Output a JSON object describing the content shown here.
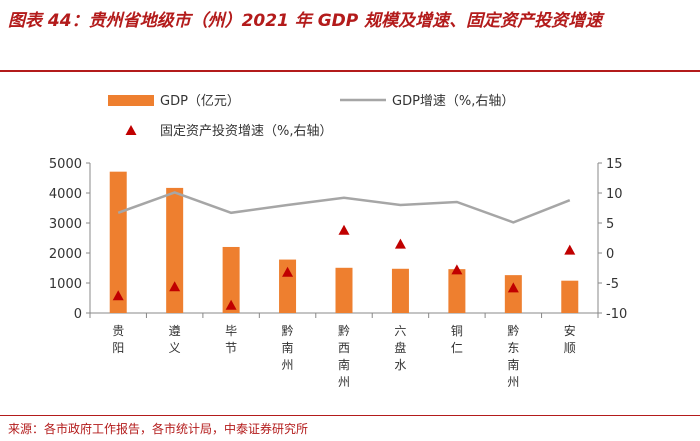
{
  "header": {
    "title": "图表 44：贵州省地级市（州）2021 年 GDP 规模及增速、固定资产投资增速"
  },
  "footer": {
    "source": "来源：各市政府工作报告，各市统计局，中泰证券研究所"
  },
  "colors": {
    "title": "#b31b1b",
    "bar": "#ee7f2f",
    "line": "#a6a6a6",
    "marker": "#c00000"
  },
  "chart_data": {
    "type": "bar",
    "title": "贵州省地级市（州）2021 年 GDP 规模及增速、固定资产投资增速",
    "categories": [
      "贵阳",
      "遵义",
      "毕节",
      "黔南州",
      "黔西南州",
      "六盘水",
      "铜仁",
      "黔东南州",
      "安顺"
    ],
    "series": [
      {
        "name": "GDP（亿元）",
        "type": "bar",
        "axis": "left",
        "values": [
          4711,
          4170,
          2201,
          1781,
          1507,
          1474,
          1462,
          1262,
          1077
        ]
      },
      {
        "name": "GDP增速（%,右轴）",
        "type": "line",
        "axis": "right",
        "values": [
          6.7,
          10.1,
          6.7,
          8.0,
          9.2,
          8.0,
          8.5,
          5.1,
          8.8
        ]
      },
      {
        "name": "固定资产投资增速（%,右轴）",
        "type": "marker",
        "axis": "right",
        "values": [
          -7.2,
          -5.7,
          -8.8,
          -3.3,
          3.7,
          1.4,
          -2.9,
          -5.9,
          0.4
        ]
      }
    ],
    "y_left": {
      "ylim": [
        0,
        5000
      ],
      "ticks": [
        "0",
        "1000",
        "2000",
        "3000",
        "4000",
        "5000"
      ]
    },
    "y_right": {
      "ylim": [
        -10,
        15
      ],
      "ticks": [
        "-10",
        "-5",
        "0",
        "5",
        "10",
        "15"
      ]
    },
    "legend": [
      "GDP（亿元）",
      "GDP增速（%,右轴）",
      "固定资产投资增速（%,右轴）"
    ]
  }
}
